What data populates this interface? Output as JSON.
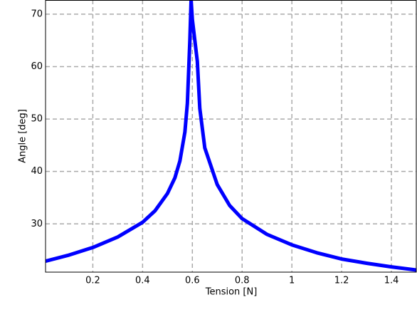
{
  "chart_data": {
    "type": "line",
    "x_label": "Tension [N]",
    "y_label": "Angle [deg]",
    "xlim": [
      0.01,
      1.5
    ],
    "ylim": [
      20.8,
      72.7
    ],
    "xticks": [
      0.2,
      0.4,
      0.6,
      0.8,
      {
        "value": 1,
        "label": "1"
      },
      1.2,
      1.4
    ],
    "yticks": [
      30,
      40,
      50,
      60,
      70
    ],
    "grid": true,
    "series": [
      {
        "name": "Angle",
        "color": "#0000ff",
        "x": [
          0.01,
          0.1,
          0.2,
          0.3,
          0.4,
          0.45,
          0.5,
          0.53,
          0.55,
          0.57,
          0.58,
          0.59,
          0.595,
          0.6,
          0.61,
          0.62,
          0.63,
          0.65,
          0.7,
          0.75,
          0.8,
          0.9,
          1.0,
          1.1,
          1.2,
          1.3,
          1.4,
          1.5
        ],
        "values": [
          22.9,
          24.0,
          25.5,
          27.5,
          30.3,
          32.5,
          35.8,
          38.8,
          42.0,
          47.5,
          53.0,
          65.0,
          72.7,
          69.0,
          65.0,
          61.0,
          52.0,
          44.5,
          37.5,
          33.5,
          31.0,
          28.0,
          26.0,
          24.5,
          23.3,
          22.5,
          21.8,
          21.2
        ]
      }
    ]
  }
}
